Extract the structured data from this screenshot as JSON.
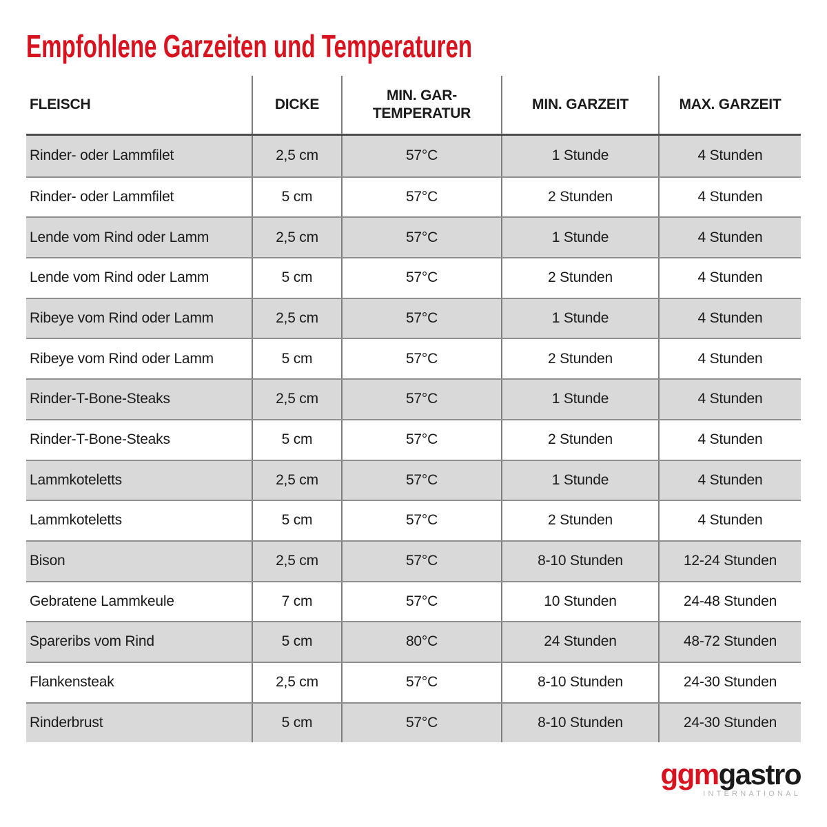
{
  "page": {
    "title": "Empfohlene Garzeiten und Temperaturen"
  },
  "colors": {
    "accent_red": "#d8121f",
    "text_black": "#1a1a1a",
    "row_alt_gray": "#d9d9d9",
    "divider_gray": "#7d7d7d",
    "row_separator_gray": "#8f8f8f",
    "header_underline_dark": "#4d4d4d",
    "logo_subtitle_gray": "#b5b5b5"
  },
  "table": {
    "columns": [
      {
        "key": "fleisch",
        "label": "FLEISCH",
        "align": "left"
      },
      {
        "key": "dicke",
        "label": "DICKE",
        "align": "center"
      },
      {
        "key": "min-gartemperatur",
        "label": "MIN. GAR-\nTEMPERATUR",
        "align": "center"
      },
      {
        "key": "min-garzeit",
        "label": "MIN. GARZEIT",
        "align": "center"
      },
      {
        "key": "max-garzeit",
        "label": "MAX. GARZEIT",
        "align": "center"
      }
    ],
    "rows": [
      [
        "Rinder- oder Lammfilet",
        "2,5 cm",
        "57°C",
        "1 Stunde",
        "4 Stunden"
      ],
      [
        "Rinder- oder Lammfilet",
        "5 cm",
        "57°C",
        "2 Stunden",
        "4 Stunden"
      ],
      [
        "Lende vom Rind oder Lamm",
        "2,5 cm",
        "57°C",
        "1 Stunde",
        "4 Stunden"
      ],
      [
        "Lende vom Rind oder Lamm",
        "5 cm",
        "57°C",
        "2 Stunden",
        "4 Stunden"
      ],
      [
        "Ribeye vom Rind oder Lamm",
        "2,5 cm",
        "57°C",
        "1 Stunde",
        "4 Stunden"
      ],
      [
        "Ribeye vom Rind oder Lamm",
        "5 cm",
        "57°C",
        "2 Stunden",
        "4 Stunden"
      ],
      [
        "Rinder-T-Bone-Steaks",
        "2,5 cm",
        "57°C",
        "1 Stunde",
        "4 Stunden"
      ],
      [
        "Rinder-T-Bone-Steaks",
        "5 cm",
        "57°C",
        "2 Stunden",
        "4 Stunden"
      ],
      [
        "Lammkoteletts",
        "2,5 cm",
        "57°C",
        "1 Stunde",
        "4 Stunden"
      ],
      [
        "Lammkoteletts",
        "5 cm",
        "57°C",
        "2 Stunden",
        "4 Stunden"
      ],
      [
        "Bison",
        "2,5 cm",
        "57°C",
        "8-10 Stunden",
        "12-24 Stunden"
      ],
      [
        "Gebratene Lammkeule",
        "7 cm",
        "57°C",
        "10 Stunden",
        "24-48 Stunden"
      ],
      [
        "Spareribs vom Rind",
        "5 cm",
        "80°C",
        "24 Stunden",
        "48-72 Stunden"
      ],
      [
        "Flankensteak",
        "2,5 cm",
        "57°C",
        "8-10 Stunden",
        "24-30 Stunden"
      ],
      [
        "Rinderbrust",
        "5 cm",
        "57°C",
        "8-10 Stunden",
        "24-30 Stunden"
      ]
    ]
  },
  "footer": {
    "logo": {
      "part_red": "ggm",
      "part_black": "gastro",
      "subtitle": "INTERNATIONAL"
    }
  }
}
